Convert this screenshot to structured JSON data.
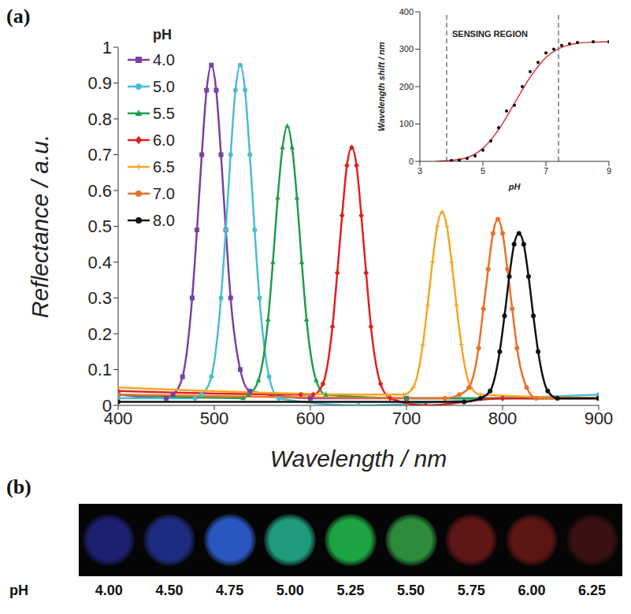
{
  "chart_data": [
    {
      "panel": "(a)",
      "type": "line",
      "x_label": "Wavelength / nm",
      "y_label": "Reflectance / a.u.",
      "legend_title": "pH",
      "legend": "upper left",
      "grid": false,
      "xlim": [
        400,
        900
      ],
      "xticks": [
        400,
        500,
        600,
        700,
        800,
        900
      ],
      "ylim": [
        0,
        1
      ],
      "yticks": [
        0,
        0.1,
        0.2,
        0.3,
        0.4,
        0.5,
        0.6,
        0.7,
        0.8,
        0.9,
        1
      ],
      "series": [
        {
          "name": "4.0",
          "color": "#7a3fa3",
          "marker": "square",
          "x": [
            400,
            450,
            457,
            467,
            477,
            482,
            487,
            492,
            497,
            502,
            507,
            512,
            517,
            527,
            537,
            600,
            700,
            900
          ],
          "values": [
            0.03,
            0.02,
            0.03,
            0.08,
            0.3,
            0.49,
            0.7,
            0.88,
            0.95,
            0.88,
            0.7,
            0.49,
            0.3,
            0.1,
            0.04,
            0.02,
            0.02,
            0.02
          ]
        },
        {
          "name": "5.0",
          "color": "#4bbcd2",
          "marker": "circle",
          "x": [
            400,
            480,
            487,
            497,
            507,
            512,
            517,
            522,
            527,
            532,
            537,
            542,
            547,
            557,
            567,
            650,
            800,
            900
          ],
          "values": [
            0.02,
            0.02,
            0.03,
            0.08,
            0.3,
            0.49,
            0.7,
            0.88,
            0.95,
            0.88,
            0.7,
            0.49,
            0.3,
            0.08,
            0.02,
            0.0,
            0.02,
            0.03
          ]
        },
        {
          "name": "5.5",
          "color": "#1e9e4a",
          "marker": "triangle",
          "x": [
            400,
            530,
            536,
            546,
            556,
            561,
            566,
            571,
            576,
            581,
            586,
            591,
            596,
            606,
            616,
            700,
            900
          ],
          "values": [
            0.03,
            0.02,
            0.03,
            0.07,
            0.24,
            0.4,
            0.58,
            0.72,
            0.78,
            0.72,
            0.58,
            0.4,
            0.24,
            0.07,
            0.03,
            0.02,
            0.02
          ]
        },
        {
          "name": "6.0",
          "color": "#e0211f",
          "marker": "diamond",
          "x": [
            400,
            590,
            603,
            613,
            623,
            628,
            633,
            638,
            643,
            648,
            653,
            658,
            663,
            673,
            683,
            720,
            800,
            900
          ],
          "values": [
            0.04,
            0.03,
            0.03,
            0.06,
            0.22,
            0.37,
            0.53,
            0.67,
            0.72,
            0.67,
            0.53,
            0.37,
            0.22,
            0.06,
            0.02,
            0.0,
            0.02,
            0.02
          ]
        },
        {
          "name": "6.5",
          "color": "#f5a623",
          "marker": "plus",
          "x": [
            400,
            680,
            697,
            707,
            717,
            722,
            727,
            732,
            737,
            742,
            747,
            752,
            757,
            767,
            777,
            900
          ],
          "values": [
            0.05,
            0.03,
            0.03,
            0.05,
            0.17,
            0.28,
            0.4,
            0.5,
            0.54,
            0.5,
            0.4,
            0.28,
            0.17,
            0.05,
            0.03,
            0.02
          ]
        },
        {
          "name": "7.0",
          "color": "#e8722a",
          "marker": "circle",
          "x": [
            400,
            740,
            755,
            765,
            775,
            780,
            785,
            790,
            795,
            800,
            805,
            810,
            815,
            825,
            835,
            900
          ],
          "values": [
            0.03,
            0.02,
            0.03,
            0.05,
            0.16,
            0.27,
            0.38,
            0.48,
            0.52,
            0.48,
            0.38,
            0.27,
            0.16,
            0.05,
            0.02,
            0.02
          ]
        },
        {
          "name": "8.0",
          "color": "#111111",
          "marker": "circle",
          "x": [
            400,
            760,
            777,
            787,
            797,
            802,
            807,
            812,
            817,
            822,
            827,
            832,
            837,
            847,
            857,
            900
          ],
          "values": [
            0.01,
            0.01,
            0.02,
            0.04,
            0.15,
            0.25,
            0.36,
            0.45,
            0.48,
            0.45,
            0.36,
            0.25,
            0.15,
            0.04,
            0.02,
            0.02
          ]
        }
      ]
    },
    {
      "type": "scatter",
      "x_label": "pH",
      "y_label": "Wavelength shift / nm",
      "annotation": "SENSING REGION",
      "reference_lines": [
        3.85,
        7.4
      ],
      "grid": false,
      "xlim": [
        3,
        9
      ],
      "xticks": [
        3,
        5,
        7,
        9
      ],
      "ylim": [
        0,
        400
      ],
      "yticks": [
        0,
        100,
        200,
        300,
        400
      ],
      "series": [
        {
          "type": "scatter",
          "color": "#000000",
          "marker": "circle",
          "x": [
            4.0,
            4.25,
            4.5,
            4.75,
            5.0,
            5.25,
            5.5,
            5.75,
            6.0,
            6.25,
            6.5,
            6.75,
            7.0,
            7.25,
            7.5,
            7.75,
            8.0,
            8.5,
            9.0
          ],
          "values": [
            2,
            3,
            8,
            15,
            30,
            55,
            90,
            135,
            150,
            200,
            240,
            265,
            290,
            300,
            310,
            315,
            318,
            320,
            320
          ]
        },
        {
          "type": "line",
          "color": "#e03030",
          "x": [
            3.5,
            4.0,
            4.5,
            5.0,
            5.5,
            6.0,
            6.5,
            7.0,
            7.5,
            8.0,
            8.5,
            9.0
          ],
          "values": [
            0,
            3,
            10,
            35,
            85,
            155,
            225,
            278,
            305,
            316,
            319,
            320
          ]
        }
      ]
    }
  ],
  "strip": {
    "panel": "(b)",
    "label": "pH",
    "values": [
      4.0,
      4.5,
      4.75,
      5.0,
      5.25,
      5.5,
      5.75,
      6.0,
      6.25
    ],
    "value_labels": [
      "4.00",
      "4.50",
      "4.75",
      "5.00",
      "5.25",
      "5.50",
      "5.75",
      "6.00",
      "6.25"
    ],
    "colors": [
      "#1c2070",
      "#1e2c80",
      "#2a56c0",
      "#1f9a7c",
      "#1ca442",
      "#2c8c3c",
      "#5e1616",
      "#5a1515",
      "#3a1010"
    ]
  }
}
